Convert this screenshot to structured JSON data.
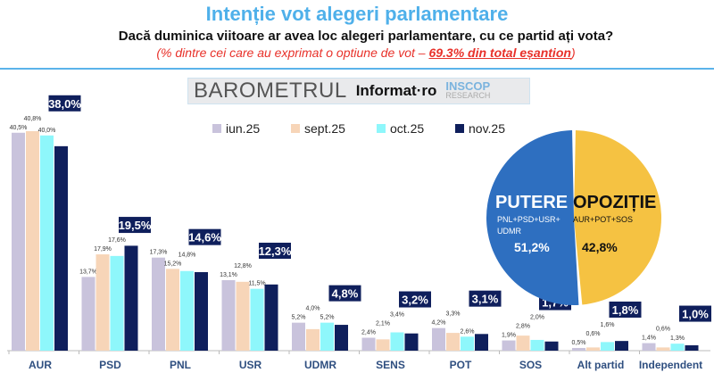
{
  "header": {
    "title": "Intenție vot alegeri parlamentare",
    "question": "Dacă duminica viitoare ar avea loc alegeri parlamentare, cu ce partid ați vota?",
    "note_prefix": "(% dintre cei care au exprimat o optiune de vot – ",
    "note_highlight": "69.3% din total eșantion",
    "note_suffix": ")"
  },
  "logos": {
    "barometrul": "BAROMETRUL",
    "informat": "Informat·ro",
    "inscop": "INSCOP",
    "research": "RESEARCH"
  },
  "chart_data": [
    {
      "type": "bar",
      "legend_position": "top",
      "categories": [
        "AUR",
        "PSD",
        "PNL",
        "USR",
        "UDMR",
        "SENS",
        "POT",
        "SOS",
        "Alt partid",
        "Independent"
      ],
      "series": [
        {
          "name": "iun.25",
          "color": "#c9c3dc",
          "values": [
            40.5,
            13.7,
            17.3,
            13.1,
            5.2,
            2.4,
            4.2,
            1.9,
            0.5,
            1.4
          ],
          "labels": [
            "40,5%",
            "13,7%",
            "17,3%",
            "13,1%",
            "5,2%",
            "2,4%",
            "4,2%",
            "1,9%",
            "0,5%",
            "1,4%"
          ]
        },
        {
          "name": "sept.25",
          "color": "#f7d5b8",
          "values": [
            40.8,
            17.9,
            15.2,
            12.8,
            4.0,
            2.1,
            3.3,
            2.8,
            0.6,
            0.6
          ],
          "labels": [
            "40,8%",
            "17,9%",
            "15,2%",
            "12,8%",
            "4,0%",
            "2,1%",
            "3,3%",
            "2,8%",
            "0,6%",
            "0,6%"
          ]
        },
        {
          "name": "oct.25",
          "color": "#8ef7fb",
          "values": [
            40.0,
            17.6,
            14.8,
            11.5,
            5.2,
            3.4,
            2.6,
            2.0,
            1.6,
            1.3
          ],
          "labels": [
            "40,0%",
            "17,6%",
            "14,8%",
            "11,5%",
            "5,2%",
            "3,4%",
            "2,6%",
            "2,0%",
            "1,6%",
            "1,3%"
          ]
        },
        {
          "name": "nov.25",
          "color": "#0f1f5c",
          "values": [
            38.0,
            19.5,
            14.6,
            12.3,
            4.8,
            3.2,
            3.1,
            1.7,
            1.8,
            1.0
          ],
          "labels": [
            "38,0%",
            "19,5%",
            "14,6%",
            "12,3%",
            "4,8%",
            "3,2%",
            "3,1%",
            "1,7%",
            "1,8%",
            "1,0%"
          ]
        }
      ]
    },
    {
      "type": "pie",
      "slices": [
        {
          "name": "PUTERE",
          "detail": "PNL+PSD+USR+ UDMR",
          "value": 51.2,
          "label": "51,2%",
          "color": "#2e6fc0"
        },
        {
          "name": "OPOZIȚIE",
          "detail": "AUR+POT+SOS",
          "value": 42.8,
          "label": "42,8%",
          "color": "#f5c242"
        }
      ]
    }
  ]
}
